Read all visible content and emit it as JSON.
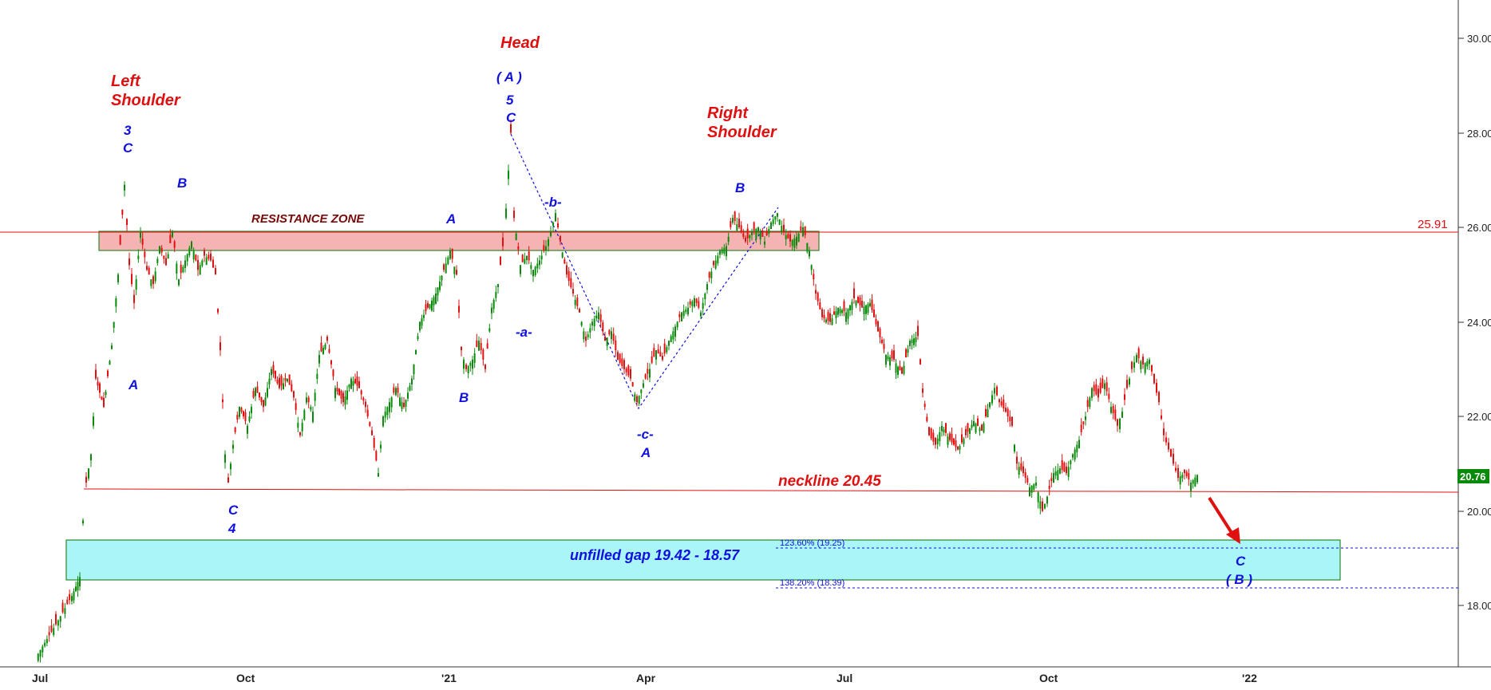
{
  "chart_data": {
    "type": "candlestick",
    "y_axis": {
      "range": [
        16.8,
        30.8
      ],
      "ticks": [
        "30.00",
        "28.00",
        "26.00",
        "24.00",
        "22.00",
        "20.00",
        "18.00"
      ]
    },
    "x_axis": {
      "ticks": [
        "Jul",
        "Oct",
        "'21",
        "Apr",
        "Jul",
        "Oct",
        "'22"
      ]
    },
    "price_labels": {
      "resistance": "25.91",
      "last": "20.76"
    },
    "last_price": 20.76,
    "resistance_level": 25.91,
    "resistance_zone": {
      "label": "RESISTANCE ZONE",
      "low": 25.5,
      "high": 25.9
    },
    "neckline": {
      "label": "neckline 20.45",
      "value": 20.45
    },
    "gap": {
      "label": "unfilled gap 19.42 - 18.57",
      "high": 19.42,
      "low": 18.57
    },
    "fib_levels": [
      {
        "label": "123.60% (19.25)",
        "value": 19.25
      },
      {
        "label": "138.20% (18.39)",
        "value": 18.39
      }
    ],
    "pattern_labels": {
      "left_shoulder": [
        "Left",
        "Shoulder"
      ],
      "head": "Head",
      "right_shoulder": [
        "Right",
        "Shoulder"
      ]
    },
    "wave_labels": [
      {
        "id": "w-3",
        "text": "3"
      },
      {
        "id": "w-3c",
        "text": "C"
      },
      {
        "id": "w-b1",
        "text": "B"
      },
      {
        "id": "w-a1",
        "text": "A"
      },
      {
        "id": "w-c4",
        "text": "C"
      },
      {
        "id": "w-4",
        "text": "4"
      },
      {
        "id": "w-a2",
        "text": "A"
      },
      {
        "id": "w-b2",
        "text": "B"
      },
      {
        "id": "w-big-a",
        "text": "( A )"
      },
      {
        "id": "w-5",
        "text": "5"
      },
      {
        "id": "w-5c",
        "text": "C"
      },
      {
        "id": "w-sub-b",
        "text": "-b-"
      },
      {
        "id": "w-sub-a",
        "text": "-a-"
      },
      {
        "id": "w-sub-c",
        "text": "-c-"
      },
      {
        "id": "w-a3",
        "text": "A"
      },
      {
        "id": "w-b3",
        "text": "B"
      },
      {
        "id": "w-target-c",
        "text": "C"
      },
      {
        "id": "w-target-b",
        "text": "( B )"
      }
    ],
    "colors": {
      "up": "#0a8a0a",
      "down": "#e01010",
      "wave": "#1010e0",
      "resistance_fill": "#f5b3b3",
      "gap_fill": "#aaf5f5"
    }
  }
}
